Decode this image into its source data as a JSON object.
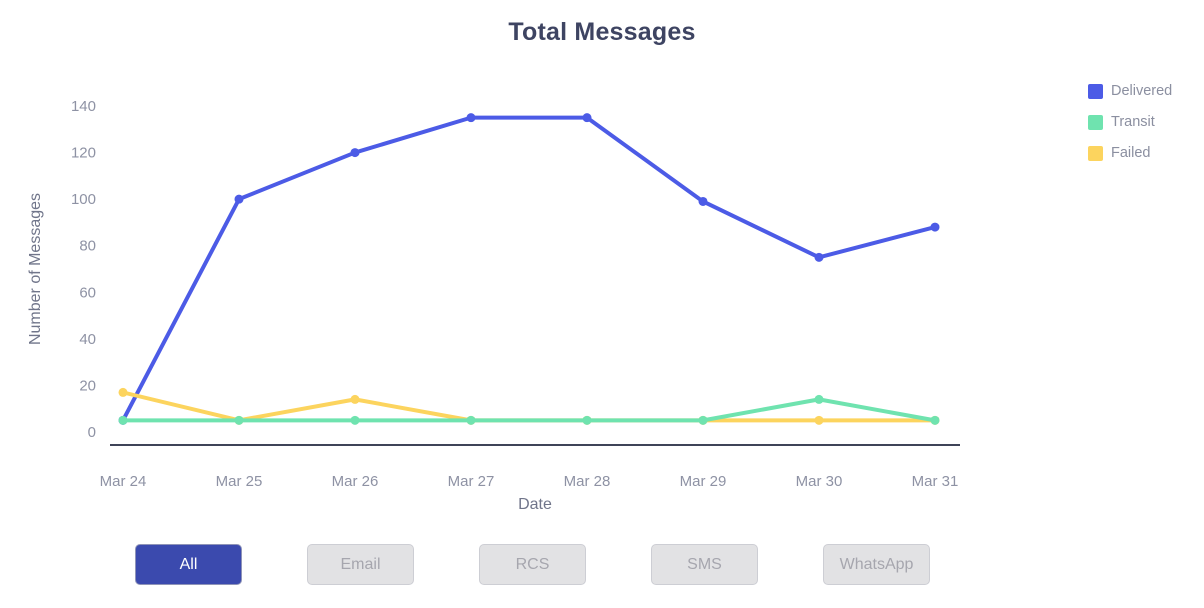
{
  "title": "Total Messages",
  "chart_data": {
    "type": "line",
    "title": "Total Messages",
    "x": [
      "Mar 24",
      "Mar 25",
      "Mar 26",
      "Mar 27",
      "Mar 28",
      "Mar 29",
      "Mar 30",
      "Mar 31"
    ],
    "series": [
      {
        "name": "Delivered",
        "color": "#4c5be6",
        "values": [
          5,
          100,
          120,
          135,
          135,
          99,
          75,
          88
        ]
      },
      {
        "name": "Transit",
        "color": "#6fe3af",
        "values": [
          5,
          5,
          5,
          5,
          5,
          5,
          14,
          5
        ]
      },
      {
        "name": "Failed",
        "color": "#fcd45e",
        "values": [
          17,
          5,
          14,
          5,
          5,
          5,
          5,
          5
        ]
      }
    ],
    "xlabel": "Date",
    "ylabel": "Number of Messages",
    "ylim": [
      0,
      140
    ],
    "yticks": [
      0,
      20,
      40,
      60,
      80,
      100,
      120,
      140
    ],
    "grid": false,
    "legend_position": "top-right"
  },
  "filters": {
    "buttons": [
      {
        "label": "All",
        "active": true
      },
      {
        "label": "Email",
        "active": false
      },
      {
        "label": "RCS",
        "active": false
      },
      {
        "label": "SMS",
        "active": false
      },
      {
        "label": "WhatsApp",
        "active": false
      }
    ]
  },
  "colors": {
    "title_text": "#3e4462",
    "tick_text": "#8e92a4",
    "axis_label_text": "#70758a",
    "axis_line": "#3f4458",
    "series_delivered": "#4c5be6",
    "series_transit": "#6fe3af",
    "series_failed": "#fcd45e",
    "active_button_bg": "#3b4aae",
    "active_button_text": "#ffffff",
    "inactive_button_bg": "#e2e2e4",
    "inactive_button_text": "#a6a6ae"
  }
}
